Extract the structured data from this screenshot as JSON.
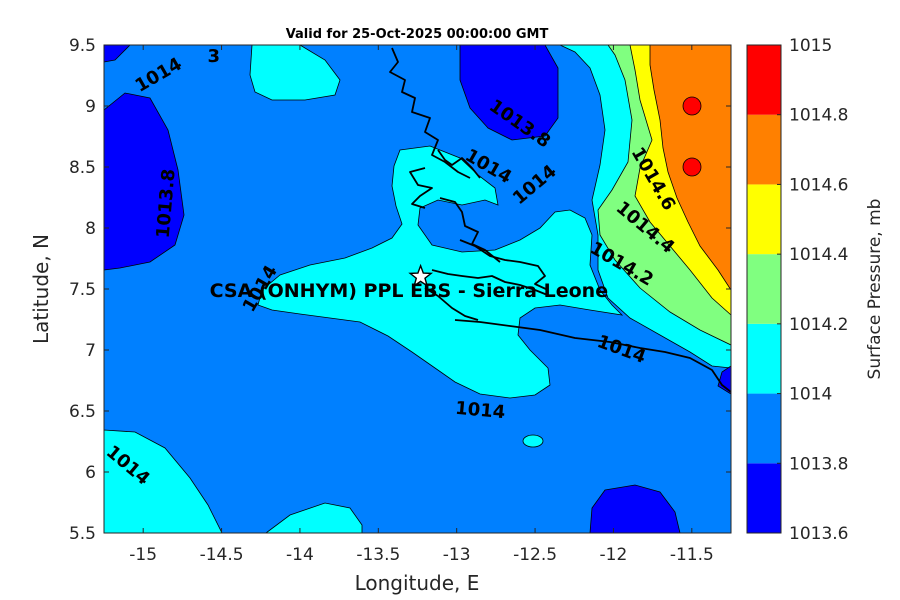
{
  "chart_data": {
    "type": "contour",
    "title": "Valid for 25-Oct-2025 00:00:00 GMT",
    "xlabel": "Longitude, E",
    "ylabel": "Latitude, N",
    "xlim": [
      -15.25,
      -11.25
    ],
    "ylim": [
      5.5,
      9.5
    ],
    "xticks": [
      -15,
      -14.5,
      -14,
      -13.5,
      -13,
      -12.5,
      -12,
      -11.5
    ],
    "xtick_labels": [
      "-15",
      "-14.5",
      "-14",
      "-13.5",
      "-13",
      "-12.5",
      "-12",
      "-11.5"
    ],
    "yticks": [
      5.5,
      6,
      6.5,
      7,
      7.5,
      8,
      8.5,
      9,
      9.5
    ],
    "ytick_labels": [
      "5.5",
      "6",
      "6.5",
      "7",
      "7.5",
      "8",
      "8.5",
      "9",
      "9.5"
    ],
    "grid": false,
    "colorbar": {
      "title": "Surface Pressure, mb",
      "levels": [
        1013.6,
        1013.8,
        1014,
        1014.2,
        1014.4,
        1014.6,
        1014.8,
        1015
      ],
      "tick_labels": [
        "1013.6",
        "1013.8",
        "1014",
        "1014.2",
        "1014.4",
        "1014.6",
        "1014.8",
        "1015"
      ],
      "colors": [
        "#0000ff",
        "#0080ff",
        "#00ffff",
        "#80ff80",
        "#ffff00",
        "#ff8000",
        "#ff0000",
        "#800000"
      ]
    },
    "contour_labels": [
      {
        "text": "1014",
        "lon": -14.9,
        "lat": 9.25,
        "angle": -30
      },
      {
        "text": "3",
        "lon": -14.55,
        "lat": 9.4,
        "angle": 0
      },
      {
        "text": "1013.8",
        "lon": -12.6,
        "lat": 8.85,
        "angle": 35
      },
      {
        "text": "1014",
        "lon": -12.5,
        "lat": 8.35,
        "angle": -40
      },
      {
        "text": "1014",
        "lon": -12.8,
        "lat": 8.5,
        "angle": 30
      },
      {
        "text": "1013.8",
        "lon": -14.85,
        "lat": 8.2,
        "angle": -85
      },
      {
        "text": "1014.6",
        "lon": -11.75,
        "lat": 8.4,
        "angle": 60
      },
      {
        "text": "1014.4",
        "lon": -11.8,
        "lat": 8.0,
        "angle": 40
      },
      {
        "text": "1014.2",
        "lon": -11.95,
        "lat": 7.7,
        "angle": 30
      },
      {
        "text": "1014",
        "lon": -14.25,
        "lat": 7.5,
        "angle": -60
      },
      {
        "text": "1014",
        "lon": -11.95,
        "lat": 7.0,
        "angle": 20
      },
      {
        "text": "1014",
        "lon": -12.85,
        "lat": 6.5,
        "angle": 5
      },
      {
        "text": "1014",
        "lon": -15.1,
        "lat": 6.05,
        "angle": 40
      }
    ],
    "site": {
      "name": "CSA (ONHYM) PPL EBS  - Sierra Leone",
      "lon": -13.23,
      "lat": 7.6
    }
  }
}
